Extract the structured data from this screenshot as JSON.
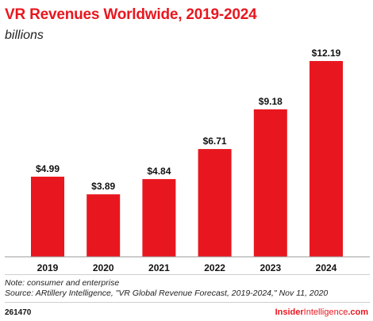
{
  "header": {
    "title": "VR Revenues Worldwide, 2019-2024",
    "subtitle": "billions"
  },
  "chart_data": {
    "type": "bar",
    "title": "VR Revenues Worldwide, 2019-2024",
    "subtitle": "billions",
    "categories": [
      "2019",
      "2020",
      "2021",
      "2022",
      "2023",
      "2024"
    ],
    "values": [
      4.99,
      3.89,
      4.84,
      6.71,
      9.18,
      12.19
    ],
    "data_labels": [
      "$4.99",
      "$3.89",
      "$4.84",
      "$6.71",
      "$9.18",
      "$12.19"
    ],
    "ylim": [
      0,
      12.19
    ],
    "grid": false,
    "bar_color": "#e8171f"
  },
  "footer": {
    "note": "Note: consumer and enterprise",
    "source": "Source: ARtillery Intelligence, \"VR Global Revenue Forecast, 2019-2024,\" Nov 11, 2020",
    "chart_id": "261470",
    "brand_part1": "Insider",
    "brand_part2": "Intelligence",
    "brand_part3": ".com"
  },
  "colors": {
    "accent": "#e8171f",
    "axis": "#999999",
    "text": "#111111"
  }
}
